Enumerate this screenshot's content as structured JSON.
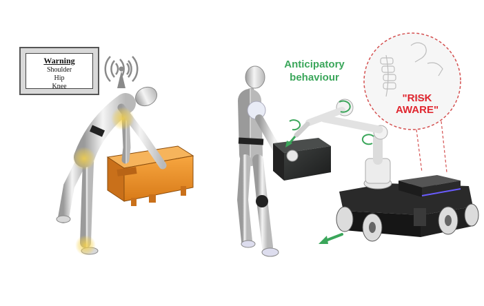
{
  "warning_panel": {
    "title": "Warning",
    "items": [
      "Shoulder",
      "Hip",
      "Knee"
    ]
  },
  "robot_label": {
    "line1": "Anticipatory",
    "line2": "behaviour"
  },
  "risk_bubble": {
    "line1": "\"RISK",
    "line2": "AWARE\""
  },
  "colors": {
    "joint_highlight": "#f6d24a",
    "caption_green": "#3aa65a",
    "risk_red": "#e0262f",
    "crate_orange": "#f0952a",
    "robot_dark": "#1e1e1e"
  },
  "icons": {
    "signal": "wireless-signal-icon",
    "arrow": "green-arrow-icon"
  }
}
